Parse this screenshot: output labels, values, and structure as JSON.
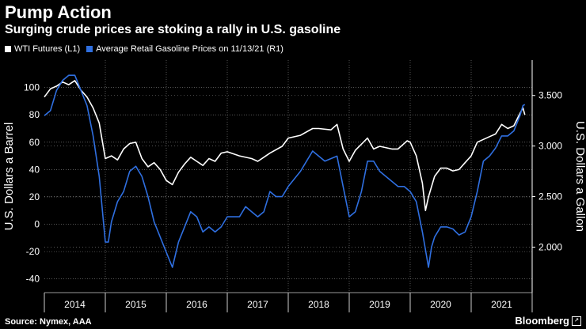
{
  "header": {
    "title": "Pump Action",
    "subtitle": "Surging crude prices are stoking a rally in U.S. gasoline"
  },
  "footer": {
    "source": "Source: Nymex, AAA",
    "brand": "Bloomberg"
  },
  "colors": {
    "background": "#000000",
    "wti": "#ffffff",
    "gasoline": "#2f6fe0",
    "grid": "#8a8a8a"
  },
  "chart_data": {
    "type": "line",
    "grid": true,
    "legend": "top-left",
    "xlabel": "",
    "x_categories": [
      "2014",
      "2015",
      "2016",
      "2017",
      "2018",
      "2019",
      "2020",
      "2021"
    ],
    "left_axis": {
      "label": "U.S. Dollars a Barrel",
      "range": [
        -50,
        120
      ],
      "ticks": [
        "100",
        "80",
        "60",
        "40",
        "20",
        "0",
        "-20",
        "-40"
      ]
    },
    "right_axis": {
      "label": "U.S. Dollars a Gallon",
      "range": [
        1.55,
        3.85
      ],
      "ticks": [
        "3.500",
        "3.000",
        "2.500",
        "2.000"
      ]
    },
    "series": [
      {
        "name": "WTI Futures (L1)",
        "axis": "left",
        "color": "#ffffff",
        "points": [
          [
            2014.0,
            93
          ],
          [
            2014.1,
            99
          ],
          [
            2014.2,
            101
          ],
          [
            2014.3,
            104
          ],
          [
            2014.4,
            102
          ],
          [
            2014.5,
            105
          ],
          [
            2014.6,
            98
          ],
          [
            2014.7,
            93
          ],
          [
            2014.8,
            85
          ],
          [
            2014.9,
            74
          ],
          [
            2015.0,
            48
          ],
          [
            2015.1,
            50
          ],
          [
            2015.2,
            47
          ],
          [
            2015.3,
            55
          ],
          [
            2015.4,
            59
          ],
          [
            2015.5,
            60
          ],
          [
            2015.6,
            48
          ],
          [
            2015.7,
            42
          ],
          [
            2015.8,
            45
          ],
          [
            2015.9,
            40
          ],
          [
            2016.0,
            32
          ],
          [
            2016.1,
            29
          ],
          [
            2016.2,
            38
          ],
          [
            2016.3,
            44
          ],
          [
            2016.4,
            49
          ],
          [
            2016.5,
            46
          ],
          [
            2016.6,
            43
          ],
          [
            2016.7,
            48
          ],
          [
            2016.8,
            46
          ],
          [
            2016.9,
            52
          ],
          [
            2017.0,
            53
          ],
          [
            2017.2,
            50
          ],
          [
            2017.4,
            48
          ],
          [
            2017.5,
            46
          ],
          [
            2017.6,
            49
          ],
          [
            2017.7,
            52
          ],
          [
            2017.9,
            57
          ],
          [
            2018.0,
            63
          ],
          [
            2018.2,
            65
          ],
          [
            2018.4,
            70
          ],
          [
            2018.5,
            70
          ],
          [
            2018.7,
            69
          ],
          [
            2018.8,
            73
          ],
          [
            2018.9,
            55
          ],
          [
            2019.0,
            46
          ],
          [
            2019.1,
            54
          ],
          [
            2019.3,
            63
          ],
          [
            2019.4,
            55
          ],
          [
            2019.5,
            57
          ],
          [
            2019.7,
            55
          ],
          [
            2019.8,
            55
          ],
          [
            2019.95,
            61
          ],
          [
            2020.0,
            60
          ],
          [
            2020.1,
            50
          ],
          [
            2020.2,
            30
          ],
          [
            2020.25,
            10
          ],
          [
            2020.3,
            20
          ],
          [
            2020.4,
            35
          ],
          [
            2020.5,
            41
          ],
          [
            2020.6,
            41
          ],
          [
            2020.7,
            39
          ],
          [
            2020.8,
            40
          ],
          [
            2020.9,
            45
          ],
          [
            2021.0,
            50
          ],
          [
            2021.1,
            60
          ],
          [
            2021.2,
            62
          ],
          [
            2021.3,
            64
          ],
          [
            2021.4,
            66
          ],
          [
            2021.5,
            73
          ],
          [
            2021.6,
            70
          ],
          [
            2021.7,
            72
          ],
          [
            2021.8,
            81
          ],
          [
            2021.85,
            85
          ],
          [
            2021.88,
            80
          ]
        ]
      },
      {
        "name": "Average Retail Gasoline Prices on 11/13/21 (R1)",
        "axis": "right",
        "color": "#2f6fe0",
        "points": [
          [
            2014.0,
            3.3
          ],
          [
            2014.1,
            3.35
          ],
          [
            2014.2,
            3.55
          ],
          [
            2014.3,
            3.65
          ],
          [
            2014.4,
            3.7
          ],
          [
            2014.5,
            3.7
          ],
          [
            2014.6,
            3.55
          ],
          [
            2014.7,
            3.4
          ],
          [
            2014.8,
            3.1
          ],
          [
            2014.9,
            2.7
          ],
          [
            2015.0,
            2.05
          ],
          [
            2015.05,
            2.05
          ],
          [
            2015.1,
            2.25
          ],
          [
            2015.2,
            2.45
          ],
          [
            2015.3,
            2.55
          ],
          [
            2015.4,
            2.75
          ],
          [
            2015.5,
            2.8
          ],
          [
            2015.6,
            2.7
          ],
          [
            2015.7,
            2.5
          ],
          [
            2015.8,
            2.25
          ],
          [
            2015.9,
            2.1
          ],
          [
            2016.0,
            1.95
          ],
          [
            2016.1,
            1.8
          ],
          [
            2016.2,
            2.05
          ],
          [
            2016.3,
            2.2
          ],
          [
            2016.4,
            2.35
          ],
          [
            2016.5,
            2.3
          ],
          [
            2016.6,
            2.15
          ],
          [
            2016.7,
            2.2
          ],
          [
            2016.8,
            2.15
          ],
          [
            2016.9,
            2.2
          ],
          [
            2017.0,
            2.3
          ],
          [
            2017.2,
            2.3
          ],
          [
            2017.3,
            2.4
          ],
          [
            2017.4,
            2.35
          ],
          [
            2017.5,
            2.3
          ],
          [
            2017.6,
            2.35
          ],
          [
            2017.7,
            2.55
          ],
          [
            2017.8,
            2.5
          ],
          [
            2017.9,
            2.5
          ],
          [
            2018.0,
            2.6
          ],
          [
            2018.2,
            2.75
          ],
          [
            2018.4,
            2.95
          ],
          [
            2018.5,
            2.9
          ],
          [
            2018.6,
            2.85
          ],
          [
            2018.8,
            2.9
          ],
          [
            2018.9,
            2.6
          ],
          [
            2019.0,
            2.3
          ],
          [
            2019.1,
            2.35
          ],
          [
            2019.2,
            2.55
          ],
          [
            2019.3,
            2.85
          ],
          [
            2019.4,
            2.85
          ],
          [
            2019.5,
            2.75
          ],
          [
            2019.6,
            2.7
          ],
          [
            2019.7,
            2.65
          ],
          [
            2019.8,
            2.6
          ],
          [
            2019.9,
            2.6
          ],
          [
            2020.0,
            2.55
          ],
          [
            2020.1,
            2.45
          ],
          [
            2020.2,
            2.15
          ],
          [
            2020.3,
            1.8
          ],
          [
            2020.35,
            2.0
          ],
          [
            2020.4,
            2.1
          ],
          [
            2020.5,
            2.2
          ],
          [
            2020.6,
            2.2
          ],
          [
            2020.7,
            2.18
          ],
          [
            2020.8,
            2.12
          ],
          [
            2020.9,
            2.15
          ],
          [
            2021.0,
            2.3
          ],
          [
            2021.1,
            2.55
          ],
          [
            2021.2,
            2.85
          ],
          [
            2021.3,
            2.9
          ],
          [
            2021.4,
            2.98
          ],
          [
            2021.5,
            3.1
          ],
          [
            2021.6,
            3.1
          ],
          [
            2021.7,
            3.15
          ],
          [
            2021.8,
            3.3
          ],
          [
            2021.85,
            3.4
          ],
          [
            2021.88,
            3.41
          ]
        ]
      }
    ]
  }
}
